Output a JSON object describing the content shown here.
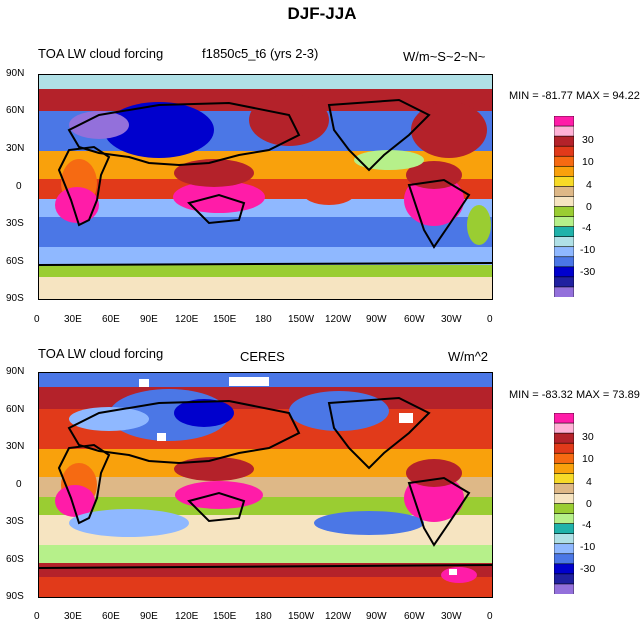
{
  "figure_title": "DJF-JJA",
  "panels": [
    {
      "left_title": "TOA LW cloud forcing",
      "center_title": "f1850c5_t6 (yrs 2-3)",
      "right_title": "W/m~S~2~N~",
      "min_max": "MIN = -81.77 MAX =  94.22"
    },
    {
      "left_title": "TOA LW cloud forcing",
      "center_title": "CERES",
      "right_title": "W/m^2",
      "min_max": "MIN = -83.32 MAX =  73.89"
    }
  ],
  "lat_labels": [
    "90N",
    "60N",
    "30N",
    "0",
    "30S",
    "60S",
    "90S"
  ],
  "lon_labels": [
    "0",
    "30E",
    "60E",
    "90E",
    "120E",
    "150E",
    "180",
    "150W",
    "120W",
    "90W",
    "60W",
    "30W",
    "0"
  ],
  "colorbar": {
    "labels": [
      "30",
      "10",
      "4",
      "0",
      "-4",
      "-10",
      "-30"
    ],
    "colors": [
      "#ff1ca8",
      "#ffb2d6",
      "#b4222a",
      "#e13a1a",
      "#f66a12",
      "#f9a10c",
      "#f7da28",
      "#deb887",
      "#f6e4c1",
      "#9acd32",
      "#b6f08a",
      "#20b2aa",
      "#b0e0e6",
      "#8fb8ff",
      "#4b77e6",
      "#0000cd",
      "#2020a0",
      "#9370db"
    ]
  }
}
